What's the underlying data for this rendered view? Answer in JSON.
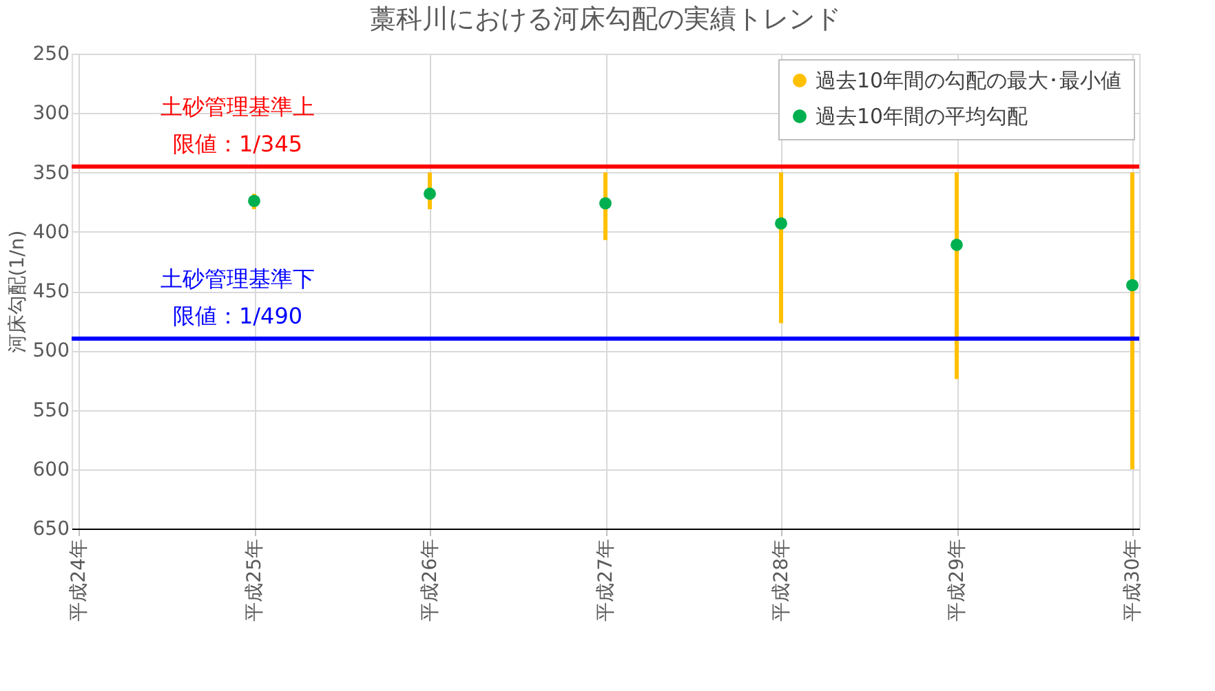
{
  "chart_data": {
    "type": "bar",
    "title": "藁科川における河床勾配の実績トレンド",
    "ylabel": "河床勾配(1/n)",
    "categories": [
      "平成24年",
      "平成25年",
      "平成26年",
      "平成27年",
      "平成28年",
      "平成29年",
      "平成30年"
    ],
    "series": [
      {
        "name": "過去10年間の勾配の最大･最小値",
        "color": "#ffc000",
        "base": [
          null,
          368,
          350,
          350,
          350,
          350,
          350
        ],
        "values": [
          null,
          13,
          31,
          57,
          127,
          174,
          250
        ]
      },
      {
        "name": "過去10年間の平均勾配",
        "type": "scatter",
        "color": "#00b050",
        "values": [
          null,
          374,
          368,
          376,
          393,
          411,
          445
        ]
      }
    ],
    "ylim": [
      650,
      250
    ],
    "yticks": [
      250,
      300,
      350,
      400,
      450,
      500,
      550,
      600,
      650
    ],
    "ref_lines": [
      {
        "axis": "y",
        "value": 345,
        "label": "土砂管理基準上限値：1/345",
        "color": "#ff0000"
      },
      {
        "axis": "y",
        "value": 490,
        "label": "土砂管理基準下限値：1/490",
        "color": "#0000ff"
      }
    ],
    "grid": true,
    "legend": "top right",
    "marker": "circle"
  }
}
